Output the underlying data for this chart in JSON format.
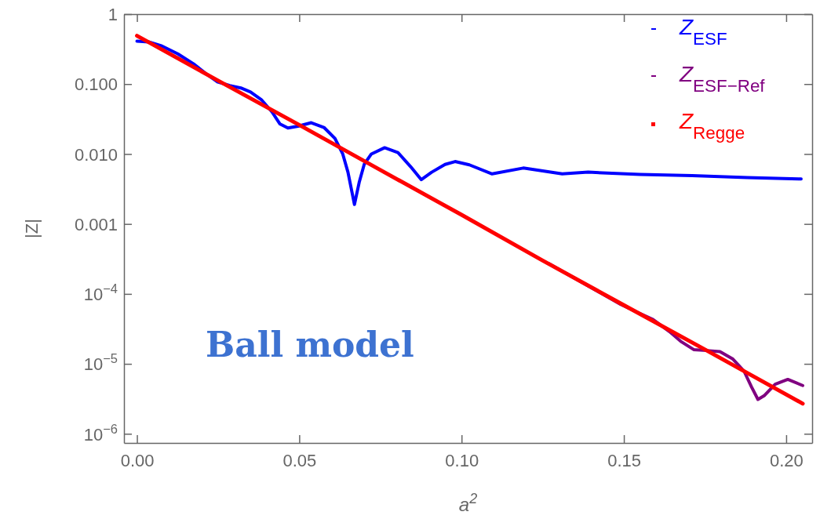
{
  "chart_data": {
    "type": "line",
    "xlabel": "a$^{2}$",
    "ylabel": "|Z|",
    "log": "y",
    "legend": "top right",
    "marker": "none",
    "grid": false,
    "xlim": [
      -0.004,
      0.208
    ],
    "xticks": [
      {
        "value": 0,
        "label": "0.00"
      },
      {
        "value": 0.05,
        "label": "0.05"
      },
      {
        "value": 0.1,
        "label": "0.10"
      },
      {
        "value": 0.15,
        "label": "0.15"
      },
      {
        "value": 0.2,
        "label": "0.20"
      }
    ],
    "ylim": [
      7.4e-07,
      1
    ],
    "yticks": [
      1,
      {
        "value": 0.1,
        "label": "0.100"
      },
      {
        "value": 0.01,
        "label": "0.010"
      },
      0.001,
      {
        "value": 0.0001,
        "label": "10$^{−4}$"
      },
      {
        "value": 1e-05,
        "label": "10$^{−5}$"
      },
      {
        "value": 1e-06,
        "label": "10$^{−6}$"
      }
    ],
    "annotations": [
      "Ball model"
    ],
    "series": [
      {
        "name": "Z$_{ESF}$",
        "color": "#0000ff",
        "x": [
          0,
          0.0036,
          0.0077,
          0.0126,
          0.0174,
          0.0213,
          0.0247,
          0.0286,
          0.032,
          0.035,
          0.0383,
          0.0416,
          0.044,
          0.0465,
          0.0496,
          0.0537,
          0.0576,
          0.061,
          0.0634,
          0.065,
          0.067,
          0.0685,
          0.07,
          0.0722,
          0.0763,
          0.0804,
          0.0843,
          0.0876,
          0.0908,
          0.0949,
          0.098,
          0.1024,
          0.1094,
          0.119,
          0.131,
          0.139,
          0.155,
          0.171,
          0.188,
          0.2046
        ],
        "values": [
          0.41,
          0.4,
          0.35,
          0.27,
          0.195,
          0.14,
          0.108,
          0.095,
          0.088,
          0.077,
          0.06,
          0.04,
          0.027,
          0.0235,
          0.025,
          0.028,
          0.024,
          0.0167,
          0.01,
          0.0055,
          0.0019,
          0.004,
          0.0071,
          0.01,
          0.0123,
          0.0105,
          0.0066,
          0.0043,
          0.0055,
          0.0071,
          0.0078,
          0.007,
          0.0052,
          0.0063,
          0.0052,
          0.0055,
          0.0051,
          0.0049,
          0.0046,
          0.0044
        ]
      },
      {
        "name": "Z$_{ESF−Ref}$",
        "color": "#800080",
        "x": [
          0.127,
          0.139,
          0.149,
          0.154,
          0.159,
          0.164,
          0.1675,
          0.1715,
          0.1755,
          0.1796,
          0.1836,
          0.187,
          0.1893,
          0.1913,
          0.1932,
          0.1966,
          0.2005,
          0.2051
        ],
        "values": [
          0.00027,
          0.00013,
          7.1e-05,
          5.5e-05,
          4.3e-05,
          2.9e-05,
          2.1e-05,
          1.6e-05,
          1.55e-05,
          1.5e-05,
          1.17e-05,
          7.9e-06,
          4.7e-06,
          3.1e-06,
          3.5e-06,
          5.1e-06,
          6e-06,
          4.9e-06
        ]
      },
      {
        "name": "Z$_{Regge}$",
        "color": "#ff0000",
        "x": [
          0,
          0.025,
          0.05,
          0.075,
          0.1,
          0.125,
          0.15,
          0.175,
          0.2051
        ],
        "values": [
          0.49,
          0.112,
          0.026,
          0.0059,
          0.00135,
          0.0003,
          6.9e-05,
          1.6e-05,
          2.7e-06
        ]
      }
    ]
  }
}
